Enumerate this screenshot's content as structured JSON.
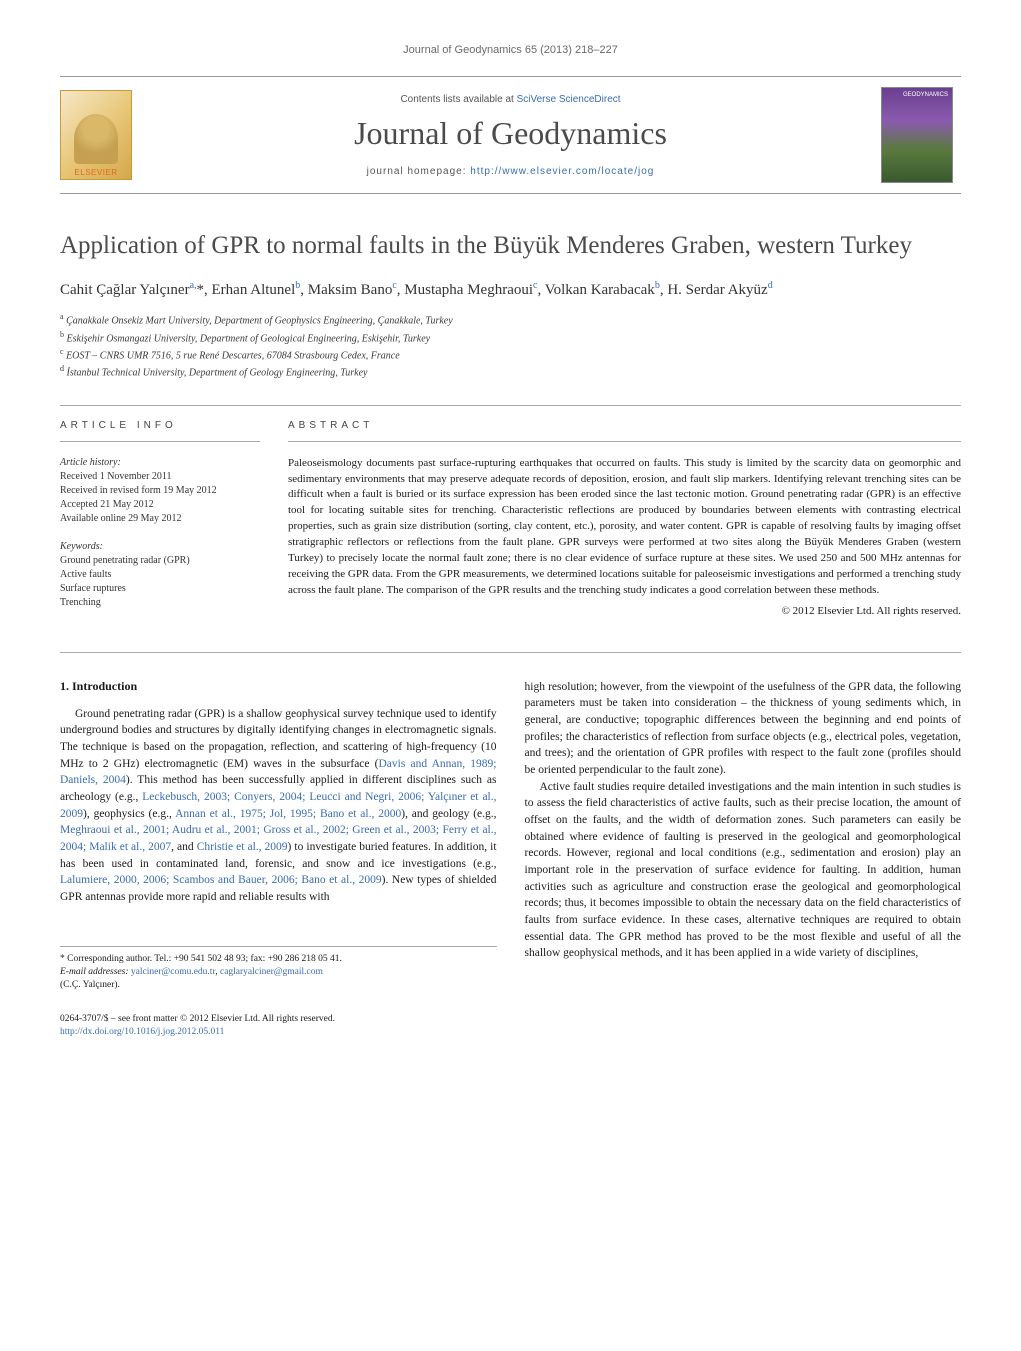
{
  "header": {
    "journal_ref": "Journal of Geodynamics 65 (2013) 218–227",
    "contents_prefix": "Contents lists available at ",
    "contents_link": "SciVerse ScienceDirect",
    "journal_name": "Journal of Geodynamics",
    "homepage_prefix": "journal homepage: ",
    "homepage_url": "http://www.elsevier.com/locate/jog",
    "publisher_logo_text": "ELSEVIER",
    "cover_text": "GEODYNAMICS"
  },
  "title": "Application of GPR to normal faults in the Büyük Menderes Graben, western Turkey",
  "authors_html": "Cahit Çağlar Yalçıner<sup>a,</sup>*, Erhan Altunel<sup>b</sup>, Maksim Bano<sup>c</sup>, Mustapha Meghraoui<sup>c</sup>, Volkan Karabacak<sup>b</sup>, H. Serdar Akyüz<sup>d</sup>",
  "affiliations": [
    {
      "sup": "a",
      "text": "Çanakkale Onsekiz Mart University, Department of Geophysics Engineering, Çanakkale, Turkey"
    },
    {
      "sup": "b",
      "text": "Eskişehir Osmangazi University, Department of Geological Engineering, Eskişehir, Turkey"
    },
    {
      "sup": "c",
      "text": "EOST – CNRS UMR 7516, 5 rue René Descartes, 67084 Strasbourg Cedex, France"
    },
    {
      "sup": "d",
      "text": "İstanbul Technical University, Department of Geology Engineering, Turkey"
    }
  ],
  "article_info": {
    "label": "article info",
    "history_label": "Article history:",
    "received": "Received 1 November 2011",
    "revised": "Received in revised form 19 May 2012",
    "accepted": "Accepted 21 May 2012",
    "online": "Available online 29 May 2012",
    "keywords_label": "Keywords:",
    "keywords": [
      "Ground penetrating radar (GPR)",
      "Active faults",
      "Surface ruptures",
      "Trenching"
    ]
  },
  "abstract": {
    "label": "abstract",
    "text": "Paleoseismology documents past surface-rupturing earthquakes that occurred on faults. This study is limited by the scarcity data on geomorphic and sedimentary environments that may preserve adequate records of deposition, erosion, and fault slip markers. Identifying relevant trenching sites can be difficult when a fault is buried or its surface expression has been eroded since the last tectonic motion. Ground penetrating radar (GPR) is an effective tool for locating suitable sites for trenching. Characteristic reflections are produced by boundaries between elements with contrasting electrical properties, such as grain size distribution (sorting, clay content, etc.), porosity, and water content. GPR is capable of resolving faults by imaging offset stratigraphic reflectors or reflections from the fault plane. GPR surveys were performed at two sites along the Büyük Menderes Graben (western Turkey) to precisely locate the normal fault zone; there is no clear evidence of surface rupture at these sites. We used 250 and 500 MHz antennas for receiving the GPR data. From the GPR measurements, we determined locations suitable for paleoseismic investigations and performed a trenching study across the fault plane. The comparison of the GPR results and the trenching study indicates a good correlation between these methods.",
    "copyright": "© 2012 Elsevier Ltd. All rights reserved."
  },
  "sections": {
    "intro_heading": "1. Introduction",
    "col1_p1_pre": "Ground penetrating radar (GPR) is a shallow geophysical survey technique used to identify underground bodies and structures by digitally identifying changes in electromagnetic signals. The technique is based on the propagation, reflection, and scattering of high-frequency (10 MHz to 2 GHz) electromagnetic (EM) waves in the subsurface (",
    "col1_ref1": "Davis and Annan, 1989; Daniels, 2004",
    "col1_p1_mid1": "). This method has been successfully applied in different disciplines such as archeology (e.g., ",
    "col1_ref2": "Leckebusch, 2003; Conyers, 2004; Leucci and Negri, 2006; Yalçıner et al., 2009",
    "col1_p1_mid2": "), geophysics (e.g., ",
    "col1_ref3": "Annan et al., 1975; Jol, 1995; Bano et al., 2000",
    "col1_p1_mid3": "), and geology (e.g., ",
    "col1_ref4": "Meghraoui et al., 2001; Audru et al., 2001; Gross et al., 2002; Green et al., 2003; Ferry et al., 2004; Malik et al., 2007",
    "col1_p1_mid4": ", and ",
    "col1_ref5": "Christie et al., 2009",
    "col1_p1_mid5": ") to investigate buried features. In addition, it has been used in contaminated land, forensic, and snow and ice investigations (e.g., ",
    "col1_ref6": "Lalumiere, 2000, 2006; Scambos and Bauer, 2006; Bano et al., 2009",
    "col1_p1_post": "). New types of shielded GPR antennas provide more rapid and reliable results with",
    "col2_p1": "high resolution; however, from the viewpoint of the usefulness of the GPR data, the following parameters must be taken into consideration – the thickness of young sediments which, in general, are conductive; topographic differences between the beginning and end points of profiles; the characteristics of reflection from surface objects (e.g., electrical poles, vegetation, and trees); and the orientation of GPR profiles with respect to the fault zone (profiles should be oriented perpendicular to the fault zone).",
    "col2_p2": "Active fault studies require detailed investigations and the main intention in such studies is to assess the field characteristics of active faults, such as their precise location, the amount of offset on the faults, and the width of deformation zones. Such parameters can easily be obtained where evidence of faulting is preserved in the geological and geomorphological records. However, regional and local conditions (e.g., sedimentation and erosion) play an important role in the preservation of surface evidence for faulting. In addition, human activities such as agriculture and construction erase the geological and geomorphological records; thus, it becomes impossible to obtain the necessary data on the field characteristics of faults from surface evidence. In these cases, alternative techniques are required to obtain essential data. The GPR method has proved to be the most flexible and useful of all the shallow geophysical methods, and it has been applied in a wide variety of disciplines,"
  },
  "corresponding": {
    "star": "*",
    "label": "Corresponding author. Tel.: +90 541 502 48 93; fax: +90 286 218 05 41.",
    "email_label": "E-mail addresses: ",
    "email1": "yalciner@comu.edu.tr",
    "sep": ", ",
    "email2": "caglaryalciner@gmail.com",
    "name": "(C.Ç. Yalçıner)."
  },
  "footer": {
    "issn_line": "0264-3707/$ – see front matter © 2012 Elsevier Ltd. All rights reserved.",
    "doi_url": "http://dx.doi.org/10.1016/j.jog.2012.05.011"
  },
  "colors": {
    "link": "#3a6db0",
    "text": "#1a1a1a",
    "muted": "#6a6a6a",
    "border": "#aaaaaa"
  }
}
